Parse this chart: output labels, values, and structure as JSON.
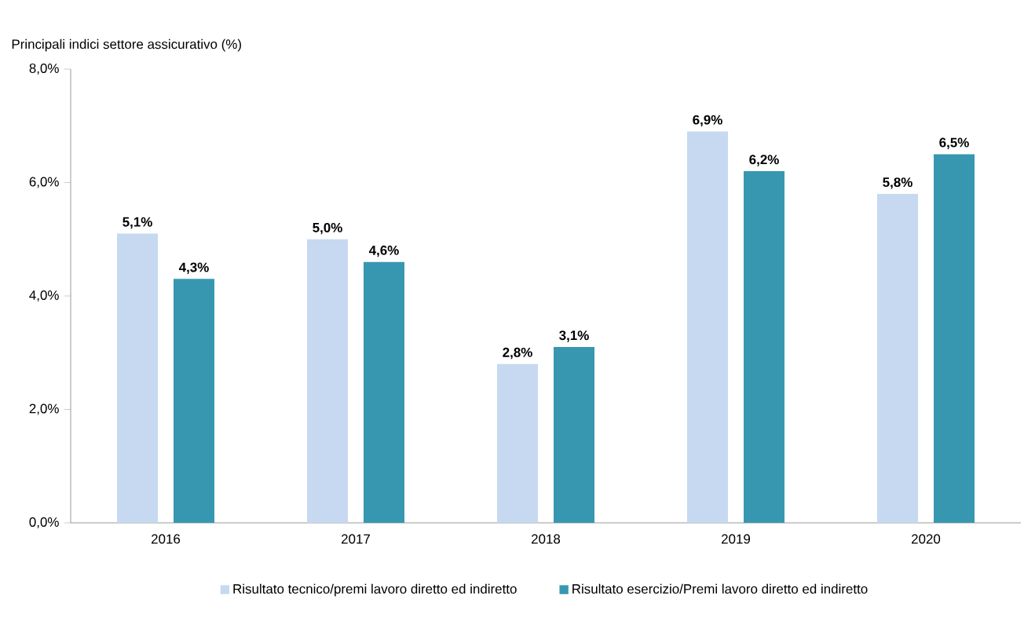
{
  "chart_data": {
    "type": "bar",
    "title": "Principali indici settore assicurativo (%)",
    "categories": [
      "2016",
      "2017",
      "2018",
      "2019",
      "2020"
    ],
    "series": [
      {
        "name": "Risultato tecnico/premi lavoro diretto ed indiretto",
        "color": "#c6d9f0",
        "values": [
          5.1,
          5.0,
          2.8,
          6.9,
          5.8
        ],
        "value_labels": [
          "5,1%",
          "5,0%",
          "2,8%",
          "6,9%",
          "5,8%"
        ]
      },
      {
        "name": "Risultato esercizio/Premi lavoro diretto ed indiretto",
        "color": "#3797b0",
        "values": [
          4.3,
          4.6,
          3.1,
          6.2,
          6.5
        ],
        "value_labels": [
          "4,3%",
          "4,6%",
          "3,1%",
          "6,2%",
          "6,5%"
        ]
      }
    ],
    "ylim": [
      0,
      8
    ],
    "yticks": [
      {
        "value": 0,
        "label": "0,0%"
      },
      {
        "value": 2,
        "label": "2,0%"
      },
      {
        "value": 4,
        "label": "4,0%"
      },
      {
        "value": 6,
        "label": "6,0%"
      },
      {
        "value": 8,
        "label": "8,0%"
      }
    ],
    "legend": "bottom",
    "grid": false
  }
}
